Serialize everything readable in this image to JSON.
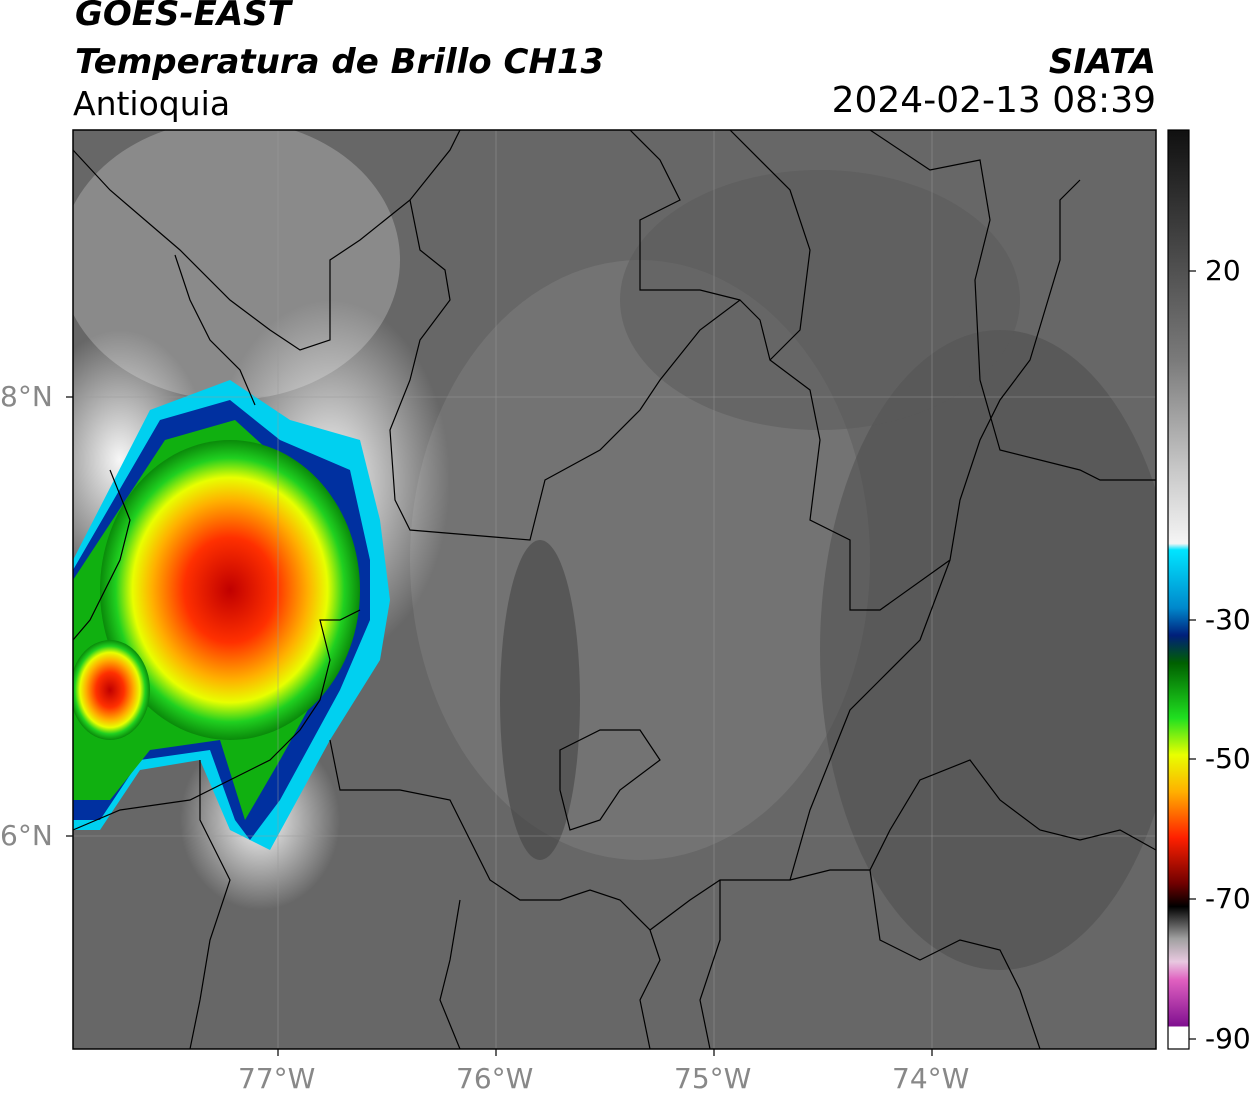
{
  "header": {
    "satellite": "GOES-EAST",
    "product": "Temperatura de Brillo CH13",
    "region": "Antioquia",
    "agency": "SIATA",
    "datetime": "2024-02-13 08:39"
  },
  "axes": {
    "lat_labels": [
      "8°N",
      "6°N"
    ],
    "lon_labels": [
      "77°W",
      "76°W",
      "75°W",
      "74°W"
    ]
  },
  "colorbar": {
    "ticks": [
      "20",
      "-30",
      "-50",
      "-70",
      "-90"
    ]
  },
  "colors": {
    "background_gray": "#686868",
    "frame": "#000000",
    "axis_label": "#888888"
  }
}
